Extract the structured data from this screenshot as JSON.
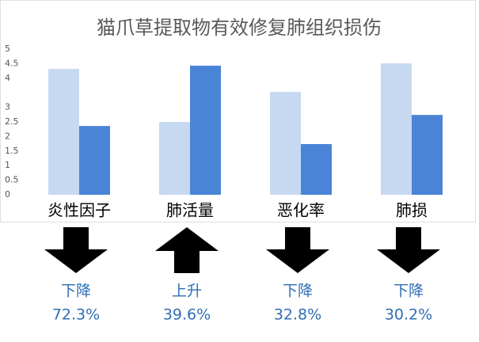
{
  "chart_data": {
    "type": "bar",
    "title": "猫爪草提取物有效修复肺组织损伤",
    "categories": [
      "炎性因子",
      "肺活量",
      "恶化率",
      "肺损"
    ],
    "series": [
      {
        "color": "#c6d9f1",
        "values": [
          4.32,
          2.5,
          3.53,
          4.51
        ]
      },
      {
        "color": "#4a84d6",
        "values": [
          2.36,
          4.43,
          1.74,
          2.74
        ]
      }
    ],
    "ylim": [
      0,
      5
    ],
    "yticks": [
      0,
      0.5,
      1,
      1.5,
      2,
      2.5,
      3,
      4,
      4.5,
      5
    ],
    "grid": false,
    "annotations": [
      {
        "arrow": "down",
        "text": "下降",
        "change": "72.3%"
      },
      {
        "arrow": "up",
        "text": "上升",
        "change": "39.6%"
      },
      {
        "arrow": "down",
        "text": "下降",
        "change": "32.8%"
      },
      {
        "arrow": "down",
        "text": "下降",
        "change": "30.2%"
      }
    ]
  }
}
